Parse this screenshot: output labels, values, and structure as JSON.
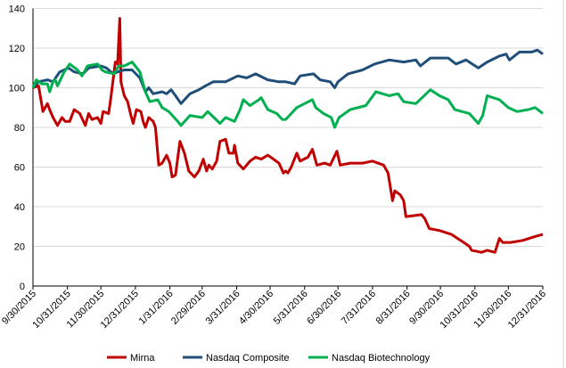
{
  "chart_data": {
    "type": "line",
    "title": "",
    "xlabel": "",
    "ylabel": "",
    "ylim": [
      0,
      140
    ],
    "yticks": [
      "0",
      "20",
      "40",
      "60",
      "80",
      "100",
      "120",
      "140"
    ],
    "xlim": [
      "9/30/2015",
      "12/31/2016"
    ],
    "xticks": [
      "9/30/2015",
      "10/31/2015",
      "11/30/2015",
      "12/31/2015",
      "1/31/2016",
      "2/29/2016",
      "3/31/2016",
      "4/30/2016",
      "5/31/2016",
      "6/30/2016",
      "7/31/2016",
      "8/31/2016",
      "9/30/2016",
      "10/31/2016",
      "11/30/2016",
      "12/31/2016"
    ],
    "grid": "horizontal",
    "legend": "bottom",
    "series": [
      {
        "name": "Mirna",
        "color": "#C00000",
        "points": [
          [
            "9/30/2015",
            100
          ],
          [
            "10/5/2015",
            101
          ],
          [
            "10/9/2015",
            88
          ],
          [
            "10/13/2015",
            92
          ],
          [
            "10/15/2015",
            89
          ],
          [
            "10/18/2015",
            85
          ],
          [
            "10/22/2015",
            81
          ],
          [
            "10/26/2015",
            85
          ],
          [
            "10/29/2015",
            83
          ],
          [
            "11/2/2015",
            83
          ],
          [
            "11/6/2015",
            89
          ],
          [
            "11/11/2015",
            87
          ],
          [
            "11/16/2015",
            81
          ],
          [
            "11/19/2015",
            87
          ],
          [
            "11/22/2015",
            84
          ],
          [
            "11/27/2015",
            85
          ],
          [
            "11/30/2015",
            82
          ],
          [
            "12/2/2015",
            88
          ],
          [
            "12/7/2015",
            87
          ],
          [
            "12/9/2015",
            95
          ],
          [
            "12/13/2015",
            113
          ],
          [
            "12/15/2015",
            112
          ],
          [
            "12/17/2015",
            135
          ],
          [
            "12/18/2015",
            103
          ],
          [
            "12/21/2015",
            96
          ],
          [
            "12/24/2015",
            93
          ],
          [
            "12/27/2015",
            86
          ],
          [
            "12/29/2015",
            82
          ],
          [
            "1/1/2016",
            89
          ],
          [
            "1/5/2016",
            88
          ],
          [
            "1/7/2016",
            83
          ],
          [
            "1/9/2016",
            80
          ],
          [
            "1/12/2016",
            85
          ],
          [
            "1/16/2016",
            83
          ],
          [
            "1/18/2016",
            80
          ],
          [
            "1/21/2016",
            61
          ],
          [
            "1/24/2016",
            62
          ],
          [
            "1/28/2016",
            66
          ],
          [
            "1/31/2016",
            62
          ],
          [
            "2/2/2016",
            55
          ],
          [
            "2/5/2016",
            56
          ],
          [
            "2/9/2016",
            73
          ],
          [
            "2/13/2016",
            67
          ],
          [
            "2/17/2016",
            58
          ],
          [
            "2/22/2016",
            55
          ],
          [
            "2/26/2016",
            58
          ],
          [
            "3/1/2016",
            64
          ],
          [
            "3/4/2016",
            58
          ],
          [
            "3/6/2016",
            61
          ],
          [
            "3/9/2016",
            59
          ],
          [
            "3/13/2016",
            63
          ],
          [
            "3/16/2016",
            73
          ],
          [
            "3/21/2016",
            74
          ],
          [
            "3/24/2016",
            67
          ],
          [
            "3/28/2016",
            67
          ],
          [
            "3/29/2016",
            71
          ],
          [
            "4/1/2016",
            62
          ],
          [
            "4/6/2016",
            59
          ],
          [
            "4/12/2016",
            63
          ],
          [
            "4/17/2016",
            65
          ],
          [
            "4/22/2016",
            64
          ],
          [
            "4/28/2016",
            66
          ],
          [
            "5/3/2016",
            64
          ],
          [
            "5/8/2016",
            62
          ],
          [
            "5/12/2016",
            57
          ],
          [
            "5/14/2016",
            58
          ],
          [
            "5/16/2016",
            57
          ],
          [
            "5/19/2016",
            60
          ],
          [
            "5/24/2016",
            67
          ],
          [
            "5/27/2016",
            63
          ],
          [
            "6/3/2016",
            65
          ],
          [
            "6/7/2016",
            69
          ],
          [
            "6/11/2016",
            61
          ],
          [
            "6/18/2016",
            62
          ],
          [
            "6/23/2016",
            61
          ],
          [
            "6/29/2016",
            68
          ],
          [
            "7/2/2016",
            61
          ],
          [
            "7/11/2016",
            62
          ],
          [
            "7/22/2016",
            62
          ],
          [
            "7/31/2016",
            63
          ],
          [
            "8/10/2016",
            61
          ],
          [
            "8/14/2016",
            57
          ],
          [
            "8/18/2016",
            43
          ],
          [
            "8/20/2016",
            48
          ],
          [
            "8/25/2016",
            46
          ],
          [
            "8/28/2016",
            43
          ],
          [
            "8/30/2016",
            35
          ],
          [
            "9/13/2016",
            36
          ],
          [
            "9/16/2016",
            34
          ],
          [
            "9/20/2016",
            29
          ],
          [
            "9/29/2016",
            28
          ],
          [
            "10/10/2016",
            26
          ],
          [
            "10/21/2016",
            22
          ],
          [
            "10/26/2016",
            20
          ],
          [
            "10/28/2016",
            18
          ],
          [
            "11/6/2016",
            17
          ],
          [
            "11/11/2016",
            18
          ],
          [
            "11/18/2016",
            17
          ],
          [
            "11/22/2016",
            24
          ],
          [
            "11/25/2016",
            22
          ],
          [
            "12/2/2016",
            22
          ],
          [
            "12/13/2016",
            23
          ],
          [
            "12/24/2016",
            25
          ],
          [
            "12/31/2016",
            26
          ]
        ]
      },
      {
        "name": "Nasdaq Composite",
        "color": "#1F4E79",
        "points": [
          [
            "9/30/2015",
            100
          ],
          [
            "10/5/2015",
            103
          ],
          [
            "10/13/2015",
            104
          ],
          [
            "10/18/2015",
            103
          ],
          [
            "10/24/2015",
            108
          ],
          [
            "11/1/2015",
            110
          ],
          [
            "11/6/2015",
            108
          ],
          [
            "11/14/2015",
            107
          ],
          [
            "11/19/2015",
            110
          ],
          [
            "11/30/2015",
            111
          ],
          [
            "12/5/2015",
            110
          ],
          [
            "12/11/2015",
            107
          ],
          [
            "12/15/2015",
            108
          ],
          [
            "12/21/2015",
            109
          ],
          [
            "12/28/2015",
            109
          ],
          [
            "1/4/2016",
            105
          ],
          [
            "1/9/2016",
            98
          ],
          [
            "1/12/2016",
            100
          ],
          [
            "1/16/2016",
            97
          ],
          [
            "1/24/2016",
            98
          ],
          [
            "1/28/2016",
            97
          ],
          [
            "2/1/2016",
            99
          ],
          [
            "2/5/2016",
            96
          ],
          [
            "2/10/2016",
            92
          ],
          [
            "2/18/2016",
            97
          ],
          [
            "2/26/2016",
            99
          ],
          [
            "3/3/2016",
            101
          ],
          [
            "3/10/2016",
            103
          ],
          [
            "3/21/2016",
            103
          ],
          [
            "4/1/2016",
            106
          ],
          [
            "4/9/2016",
            105
          ],
          [
            "4/17/2016",
            107
          ],
          [
            "4/28/2016",
            104
          ],
          [
            "5/8/2016",
            103
          ],
          [
            "5/14/2016",
            103
          ],
          [
            "5/22/2016",
            102
          ],
          [
            "5/27/2016",
            106
          ],
          [
            "6/8/2016",
            107
          ],
          [
            "6/14/2016",
            104
          ],
          [
            "6/23/2016",
            103
          ],
          [
            "6/27/2016",
            100
          ],
          [
            "6/30/2016",
            103
          ],
          [
            "7/9/2016",
            107
          ],
          [
            "7/22/2016",
            109
          ],
          [
            "8/2/2016",
            112
          ],
          [
            "8/15/2016",
            114
          ],
          [
            "8/28/2016",
            113
          ],
          [
            "9/8/2016",
            114
          ],
          [
            "9/12/2016",
            111
          ],
          [
            "9/21/2016",
            115
          ],
          [
            "10/7/2016",
            115
          ],
          [
            "10/14/2016",
            112
          ],
          [
            "10/23/2016",
            114
          ],
          [
            "11/3/2016",
            110
          ],
          [
            "11/11/2016",
            113
          ],
          [
            "11/22/2016",
            116
          ],
          [
            "11/28/2016",
            117
          ],
          [
            "12/1/2016",
            114
          ],
          [
            "12/10/2016",
            118
          ],
          [
            "12/21/2016",
            118
          ],
          [
            "12/26/2016",
            119
          ],
          [
            "12/31/2016",
            117
          ]
        ]
      },
      {
        "name": "Nasdaq Biotechnology",
        "color": "#00B050",
        "points": [
          [
            "9/30/2015",
            100
          ],
          [
            "10/3/2015",
            104
          ],
          [
            "10/8/2015",
            102
          ],
          [
            "10/13/2015",
            102
          ],
          [
            "10/15/2015",
            98
          ],
          [
            "10/18/2015",
            103
          ],
          [
            "10/20/2015",
            104
          ],
          [
            "10/22/2015",
            101
          ],
          [
            "10/28/2015",
            108
          ],
          [
            "11/2/2015",
            112
          ],
          [
            "11/9/2015",
            109
          ],
          [
            "11/13/2015",
            106
          ],
          [
            "11/18/2015",
            111
          ],
          [
            "11/27/2015",
            112
          ],
          [
            "12/1/2015",
            109
          ],
          [
            "12/4/2015",
            108
          ],
          [
            "12/12/2015",
            107
          ],
          [
            "12/16/2015",
            111
          ],
          [
            "12/21/2015",
            111
          ],
          [
            "12/28/2015",
            113
          ],
          [
            "1/4/2016",
            108
          ],
          [
            "1/9/2016",
            98
          ],
          [
            "1/13/2016",
            93
          ],
          [
            "1/20/2016",
            94
          ],
          [
            "1/24/2016",
            90
          ],
          [
            "1/30/2016",
            88
          ],
          [
            "2/7/2016",
            83
          ],
          [
            "2/10/2016",
            81
          ],
          [
            "2/18/2016",
            86
          ],
          [
            "2/29/2016",
            85
          ],
          [
            "3/5/2016",
            88
          ],
          [
            "3/16/2016",
            82
          ],
          [
            "3/21/2016",
            85
          ],
          [
            "3/29/2016",
            83
          ],
          [
            "4/3/2016",
            89
          ],
          [
            "4/6/2016",
            94
          ],
          [
            "4/12/2016",
            91
          ],
          [
            "4/20/2016",
            94
          ],
          [
            "4/22/2016",
            95
          ],
          [
            "4/28/2016",
            89
          ],
          [
            "5/6/2016",
            87
          ],
          [
            "5/11/2016",
            84
          ],
          [
            "5/14/2016",
            84
          ],
          [
            "5/24/2016",
            90
          ],
          [
            "6/7/2016",
            94
          ],
          [
            "6/10/2016",
            90
          ],
          [
            "6/17/2016",
            87
          ],
          [
            "6/24/2016",
            85
          ],
          [
            "6/27/2016",
            80
          ],
          [
            "7/1/2016",
            85
          ],
          [
            "7/11/2016",
            89
          ],
          [
            "7/25/2016",
            91
          ],
          [
            "8/3/2016",
            98
          ],
          [
            "8/15/2016",
            96
          ],
          [
            "8/23/2016",
            97
          ],
          [
            "8/28/2016",
            93
          ],
          [
            "9/8/2016",
            92
          ],
          [
            "9/21/2016",
            99
          ],
          [
            "9/29/2016",
            96
          ],
          [
            "10/7/2016",
            94
          ],
          [
            "10/13/2016",
            89
          ],
          [
            "10/26/2016",
            87
          ],
          [
            "11/3/2016",
            82
          ],
          [
            "11/7/2016",
            86
          ],
          [
            "11/11/2016",
            96
          ],
          [
            "11/22/2016",
            94
          ],
          [
            "11/30/2016",
            90
          ],
          [
            "12/8/2016",
            88
          ],
          [
            "12/18/2016",
            89
          ],
          [
            "12/24/2016",
            90
          ],
          [
            "12/31/2016",
            87
          ]
        ]
      }
    ]
  }
}
